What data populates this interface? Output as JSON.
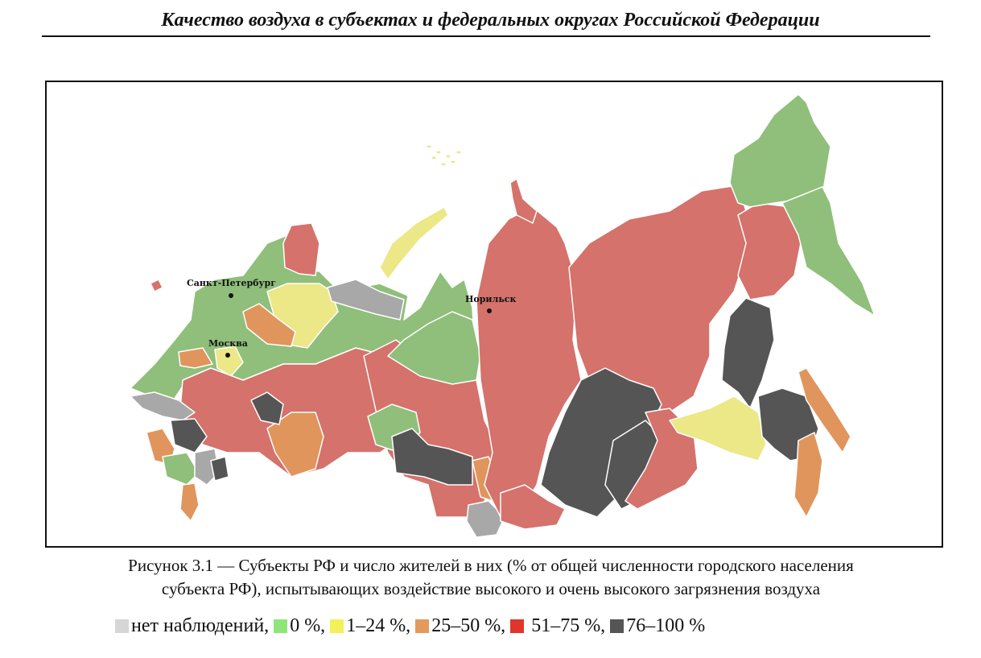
{
  "header": {
    "title": "Качество воздуха в субъектах и федеральных округах Российской Федерации"
  },
  "map": {
    "cities": [
      {
        "name": "Санкт-Петербург"
      },
      {
        "name": "Москва"
      },
      {
        "name": "Норильск"
      }
    ],
    "colors": {
      "no_data": "#a8a8a8",
      "p0": "#8fbf7a",
      "p1_24": "#ece787",
      "p25_50": "#e0955c",
      "p51_75": "#d4726b",
      "p76_100": "#555555"
    }
  },
  "caption": {
    "line1": "Рисунок 3.1 — Субъекты РФ и число жителей в них (% от общей численности городского населения",
    "line2": "субъекта РФ), испытывающих воздействие высокого и очень высокого загрязнения воздуха"
  },
  "legend": [
    {
      "label": "нет наблюдений, ",
      "color": "#d6d6d6"
    },
    {
      "label": "0 %, ",
      "color": "#8ee67a"
    },
    {
      "label": "1–24 %, ",
      "color": "#f3f05a"
    },
    {
      "label": "25–50 %, ",
      "color": "#e39a5c"
    },
    {
      "label": " 51–75 %, ",
      "color": "#e0352a"
    },
    {
      "label": "76–100 %",
      "color": "#555555"
    }
  ]
}
